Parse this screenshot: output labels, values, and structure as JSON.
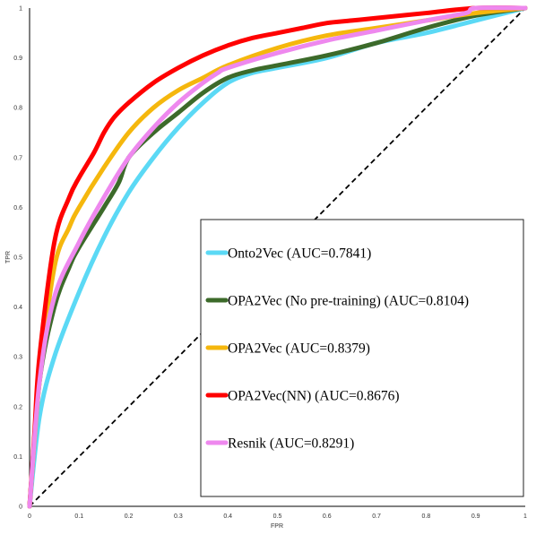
{
  "chart_data": {
    "type": "line",
    "title": "",
    "xlabel": "FPR",
    "ylabel": "TPR",
    "xlim": [
      0,
      1
    ],
    "ylim": [
      0,
      1
    ],
    "xticks": [
      "0",
      "0.1",
      "0.2",
      "0.3",
      "0.4",
      "0.5",
      "0.6",
      "0.7",
      "0.8",
      "0.9",
      "1"
    ],
    "yticks": [
      "0",
      "0.1",
      "0.2",
      "0.3",
      "0.4",
      "0.5",
      "0.6",
      "0.7",
      "0.8",
      "0.9",
      "1"
    ],
    "grid": false,
    "legend_position": "bottom-right",
    "series": [
      {
        "name": "Onto2Vec (AUC=0.7841)",
        "color": "#5bd9f5",
        "x": [
          0,
          0.02,
          0.05,
          0.1,
          0.15,
          0.2,
          0.25,
          0.3,
          0.35,
          0.4,
          0.45,
          0.5,
          0.6,
          0.7,
          0.8,
          0.9,
          1.0
        ],
        "y": [
          0,
          0.18,
          0.3,
          0.43,
          0.54,
          0.63,
          0.7,
          0.76,
          0.81,
          0.85,
          0.87,
          0.88,
          0.9,
          0.93,
          0.95,
          0.975,
          1.0
        ]
      },
      {
        "name": "OPA2Vec (No pre-training) (AUC=0.8104)",
        "color": "#3c6a2a",
        "x": [
          0,
          0.02,
          0.05,
          0.08,
          0.1,
          0.15,
          0.18,
          0.2,
          0.25,
          0.3,
          0.35,
          0.4,
          0.45,
          0.5,
          0.6,
          0.7,
          0.8,
          0.9,
          1.0
        ],
        "y": [
          0,
          0.25,
          0.4,
          0.48,
          0.52,
          0.6,
          0.65,
          0.7,
          0.75,
          0.79,
          0.83,
          0.86,
          0.875,
          0.885,
          0.905,
          0.93,
          0.96,
          0.985,
          1.0
        ]
      },
      {
        "name": "OPA2Vec (AUC=0.8379)",
        "color": "#f5b70d",
        "x": [
          0,
          0.02,
          0.05,
          0.08,
          0.1,
          0.15,
          0.2,
          0.25,
          0.3,
          0.35,
          0.4,
          0.5,
          0.6,
          0.7,
          0.8,
          0.9,
          1.0
        ],
        "y": [
          0,
          0.25,
          0.48,
          0.56,
          0.6,
          0.68,
          0.75,
          0.8,
          0.835,
          0.86,
          0.885,
          0.92,
          0.945,
          0.96,
          0.975,
          0.99,
          1.0
        ]
      },
      {
        "name": "OPA2Vec(NN) (AUC=0.8676)",
        "color": "#ff0000",
        "x": [
          0,
          0.01,
          0.02,
          0.05,
          0.08,
          0.1,
          0.13,
          0.15,
          0.17,
          0.2,
          0.25,
          0.3,
          0.35,
          0.4,
          0.45,
          0.5,
          0.55,
          0.6,
          0.65,
          0.7,
          0.8,
          0.9,
          1.0
        ],
        "y": [
          0,
          0.15,
          0.3,
          0.53,
          0.62,
          0.66,
          0.71,
          0.75,
          0.78,
          0.81,
          0.85,
          0.88,
          0.905,
          0.925,
          0.94,
          0.95,
          0.96,
          0.97,
          0.975,
          0.98,
          0.99,
          1.0,
          1.0
        ]
      },
      {
        "name": "Resnik (AUC=0.8291)",
        "color": "#ee88ee",
        "x": [
          0,
          0.02,
          0.05,
          0.1,
          0.15,
          0.2,
          0.25,
          0.3,
          0.35,
          0.38,
          0.4,
          0.5,
          0.6,
          0.7,
          0.8,
          0.88,
          0.9,
          1.0
        ],
        "y": [
          0,
          0.25,
          0.42,
          0.53,
          0.62,
          0.7,
          0.76,
          0.81,
          0.85,
          0.87,
          0.88,
          0.91,
          0.935,
          0.955,
          0.975,
          0.99,
          1.0,
          1.0
        ]
      }
    ],
    "reference_line": {
      "style": "dashed",
      "color": "#000000",
      "x": [
        0,
        1
      ],
      "y": [
        0,
        1
      ]
    }
  }
}
